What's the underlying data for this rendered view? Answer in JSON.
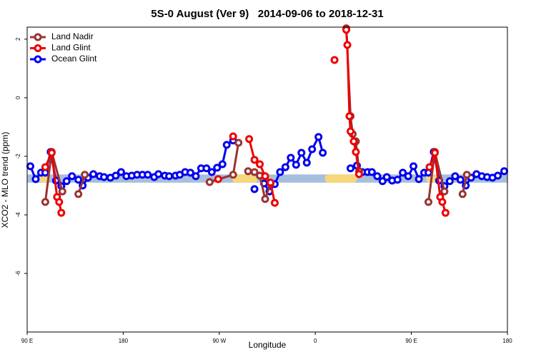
{
  "chart_data": {
    "type": "line",
    "title": "5S-0 August (Ver 9)   2014-09-06 to 2018-12-31",
    "x_label": "Longitude",
    "y_label": "XCO2 - MLO trend (ppm)",
    "xlim": [
      90,
      540
    ],
    "xticks": [
      {
        "value": 90,
        "label": "90 E"
      },
      180,
      {
        "value": 270,
        "label": "90 W"
      },
      {
        "value": 360,
        "label": "0"
      },
      {
        "value": 450,
        "label": "90 E"
      },
      {
        "value": 540,
        "label": "180"
      }
    ],
    "ylim": [
      -8,
      2.41
    ],
    "yticks": [
      -6,
      -4,
      -2,
      0,
      2
    ],
    "legend": "top-left",
    "band": {
      "ylim": [
        -2.9,
        -2.62
      ],
      "color": "#a7bfdc",
      "highlight_color": "#f7d77c",
      "highlights": [
        [
          101,
          111
        ],
        [
          282,
          306
        ],
        [
          369,
          399
        ],
        [
          464,
          475
        ]
      ]
    },
    "series": [
      {
        "name": "Land Nadir",
        "color": "#993333",
        "x": [
          107,
          113,
          123,
          130,
          138,
          144,
          200,
          261,
          283,
          288,
          292,
          297,
          303,
          308,
          313,
          318,
          350,
          389,
          393,
          395,
          398,
          401,
          430,
          466,
          472,
          481,
          490,
          498,
          502
        ],
        "values": [
          -3.56,
          -1.85,
          -3.2,
          null,
          -3.29,
          -2.63,
          null,
          -2.88,
          -2.63,
          -1.54,
          null,
          -2.51,
          -2.54,
          -2.66,
          -3.46,
          -2.93,
          null,
          2.37,
          -0.63,
          -1.24,
          -1.49,
          -2.51,
          null,
          -3.56,
          -1.85,
          -3.2,
          null,
          -3.29,
          -2.63
        ]
      },
      {
        "name": "Land Glint",
        "color": "#ee0000",
        "x": [
          107,
          113,
          118,
          120,
          122,
          200,
          269,
          276,
          283,
          290,
          298,
          303,
          308,
          313,
          318,
          322,
          350,
          378,
          384,
          389,
          390,
          392,
          393,
          396,
          398,
          401,
          430,
          467,
          472,
          477,
          479,
          482
        ],
        "values": [
          -2.37,
          -1.88,
          -3.39,
          -3.56,
          -3.93,
          null,
          -2.78,
          null,
          -1.32,
          null,
          -1.41,
          -2.12,
          -2.27,
          -2.68,
          -2.9,
          -3.59,
          null,
          1.29,
          null,
          2.32,
          1.8,
          -0.63,
          -1.15,
          -1.49,
          -1.85,
          -2.61,
          null,
          -2.37,
          -1.88,
          -3.39,
          -3.56,
          -3.93
        ]
      },
      {
        "name": "Ocean Glint",
        "color": "#0000ee",
        "x": [
          93,
          98,
          103,
          107,
          112,
          117,
          122,
          127,
          132,
          138,
          142,
          147,
          152,
          158,
          162,
          168,
          173,
          178,
          183,
          188,
          193,
          198,
          203,
          209,
          213,
          219,
          223,
          229,
          233,
          238,
          243,
          248,
          253,
          258,
          263,
          268,
          273,
          277,
          283,
          293,
          303,
          307,
          312,
          317,
          322,
          327,
          332,
          337,
          342,
          347,
          352,
          357,
          363,
          367,
          380,
          393,
          399,
          404,
          409,
          413,
          418,
          423,
          427,
          432,
          437,
          442,
          447,
          452,
          457,
          462,
          466,
          471,
          476,
          481,
          486,
          491,
          496,
          501,
          506,
          511,
          516,
          521,
          526,
          531,
          537
        ],
        "values": [
          -2.34,
          -2.78,
          -2.56,
          -2.56,
          -1.85,
          -2.83,
          -3.02,
          -2.85,
          -2.68,
          -2.8,
          -3.0,
          -2.73,
          -2.61,
          -2.68,
          -2.71,
          -2.73,
          -2.66,
          -2.54,
          -2.68,
          -2.66,
          -2.63,
          -2.63,
          -2.63,
          -2.71,
          -2.61,
          -2.66,
          -2.68,
          -2.66,
          -2.63,
          -2.54,
          -2.56,
          -2.68,
          -2.41,
          -2.41,
          -2.54,
          -2.39,
          -2.27,
          -1.61,
          -1.46,
          null,
          -3.12,
          null,
          -2.93,
          -3.2,
          -2.95,
          -2.54,
          -2.37,
          -2.05,
          -2.29,
          -1.88,
          -2.22,
          -1.76,
          -1.34,
          -1.88,
          null,
          -2.41,
          -2.32,
          -2.54,
          -2.54,
          -2.54,
          -2.68,
          -2.85,
          -2.71,
          -2.83,
          -2.8,
          -2.56,
          -2.68,
          -2.34,
          -2.78,
          -2.56,
          -2.56,
          -1.85,
          -2.83,
          -3.02,
          -2.85,
          -2.68,
          -2.8,
          -3.0,
          -2.73,
          -2.61,
          -2.68,
          -2.71,
          -2.73,
          -2.66,
          -2.51
        ]
      }
    ]
  }
}
